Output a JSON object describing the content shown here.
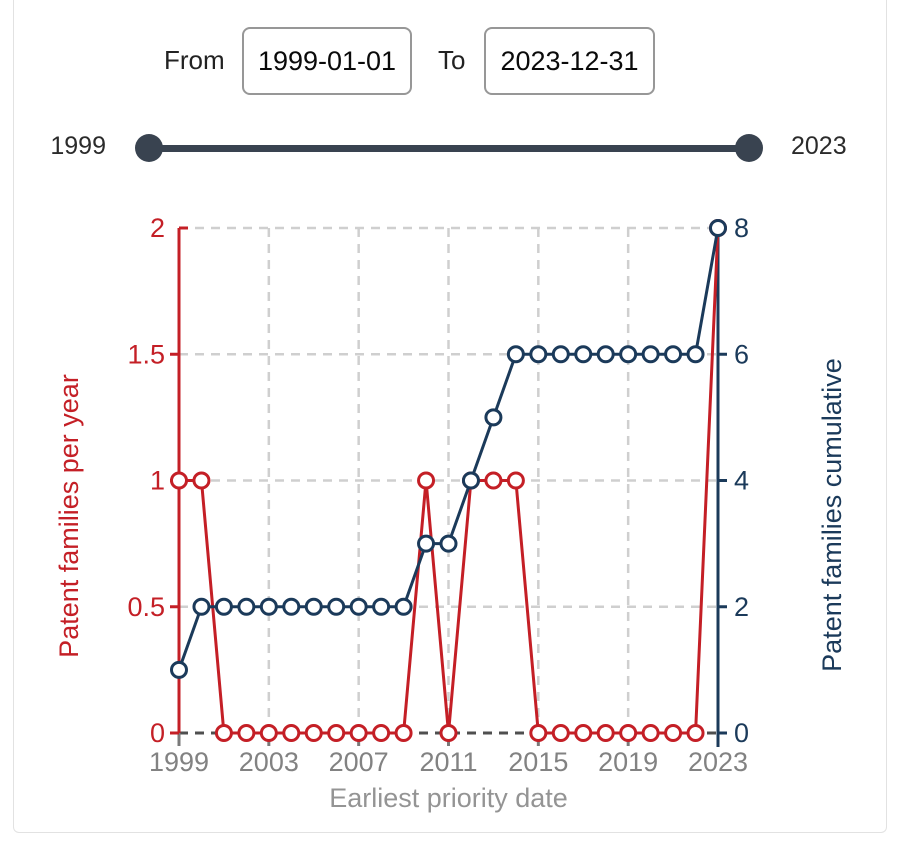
{
  "date_range": {
    "from_label": "From",
    "from_value": "1999-01-01",
    "to_label": "To",
    "to_value": "2023-12-31"
  },
  "slider": {
    "min_label": "1999",
    "max_label": "2023"
  },
  "colors": {
    "per_year": "#c41f26",
    "cumulative": "#1b3a5a",
    "grid": "#cfcfcf",
    "zero_line": "#4f4f4f",
    "x_tick": "#7a7a7a",
    "x_label": "#828282",
    "x_title": "#949494",
    "slider": "#394350"
  },
  "chart_data": {
    "type": "line",
    "x": [
      1999,
      2000,
      2001,
      2002,
      2003,
      2004,
      2005,
      2006,
      2007,
      2008,
      2009,
      2010,
      2011,
      2012,
      2013,
      2014,
      2015,
      2016,
      2017,
      2018,
      2019,
      2020,
      2021,
      2022,
      2023
    ],
    "series": [
      {
        "name": "Patent families per year",
        "axis": "left",
        "color": "#c41f26",
        "values": [
          1,
          1,
          0,
          0,
          0,
          0,
          0,
          0,
          0,
          0,
          0,
          1,
          0,
          1,
          1,
          1,
          0,
          0,
          0,
          0,
          0,
          0,
          0,
          0,
          2
        ]
      },
      {
        "name": "Patent families cumulative",
        "axis": "right",
        "color": "#1b3a5a",
        "values": [
          1,
          2,
          2,
          2,
          2,
          2,
          2,
          2,
          2,
          2,
          2,
          3,
          3,
          4,
          5,
          6,
          6,
          6,
          6,
          6,
          6,
          6,
          6,
          6,
          8
        ]
      }
    ],
    "xlabel": "Earliest priority date",
    "ylabel_left": "Patent families per year",
    "ylabel_right": "Patent families cumulative",
    "xlim": [
      1999,
      2023
    ],
    "x_ticks": [
      1999,
      2003,
      2007,
      2011,
      2015,
      2019,
      2023
    ],
    "ylim_left": [
      0,
      2
    ],
    "left_ticks": [
      0,
      0.5,
      1,
      1.5,
      2
    ],
    "ylim_right": [
      0,
      8
    ],
    "right_ticks": [
      0,
      2,
      4,
      6,
      8
    ],
    "grid": true,
    "legend": "none",
    "marker": "open-circle"
  }
}
